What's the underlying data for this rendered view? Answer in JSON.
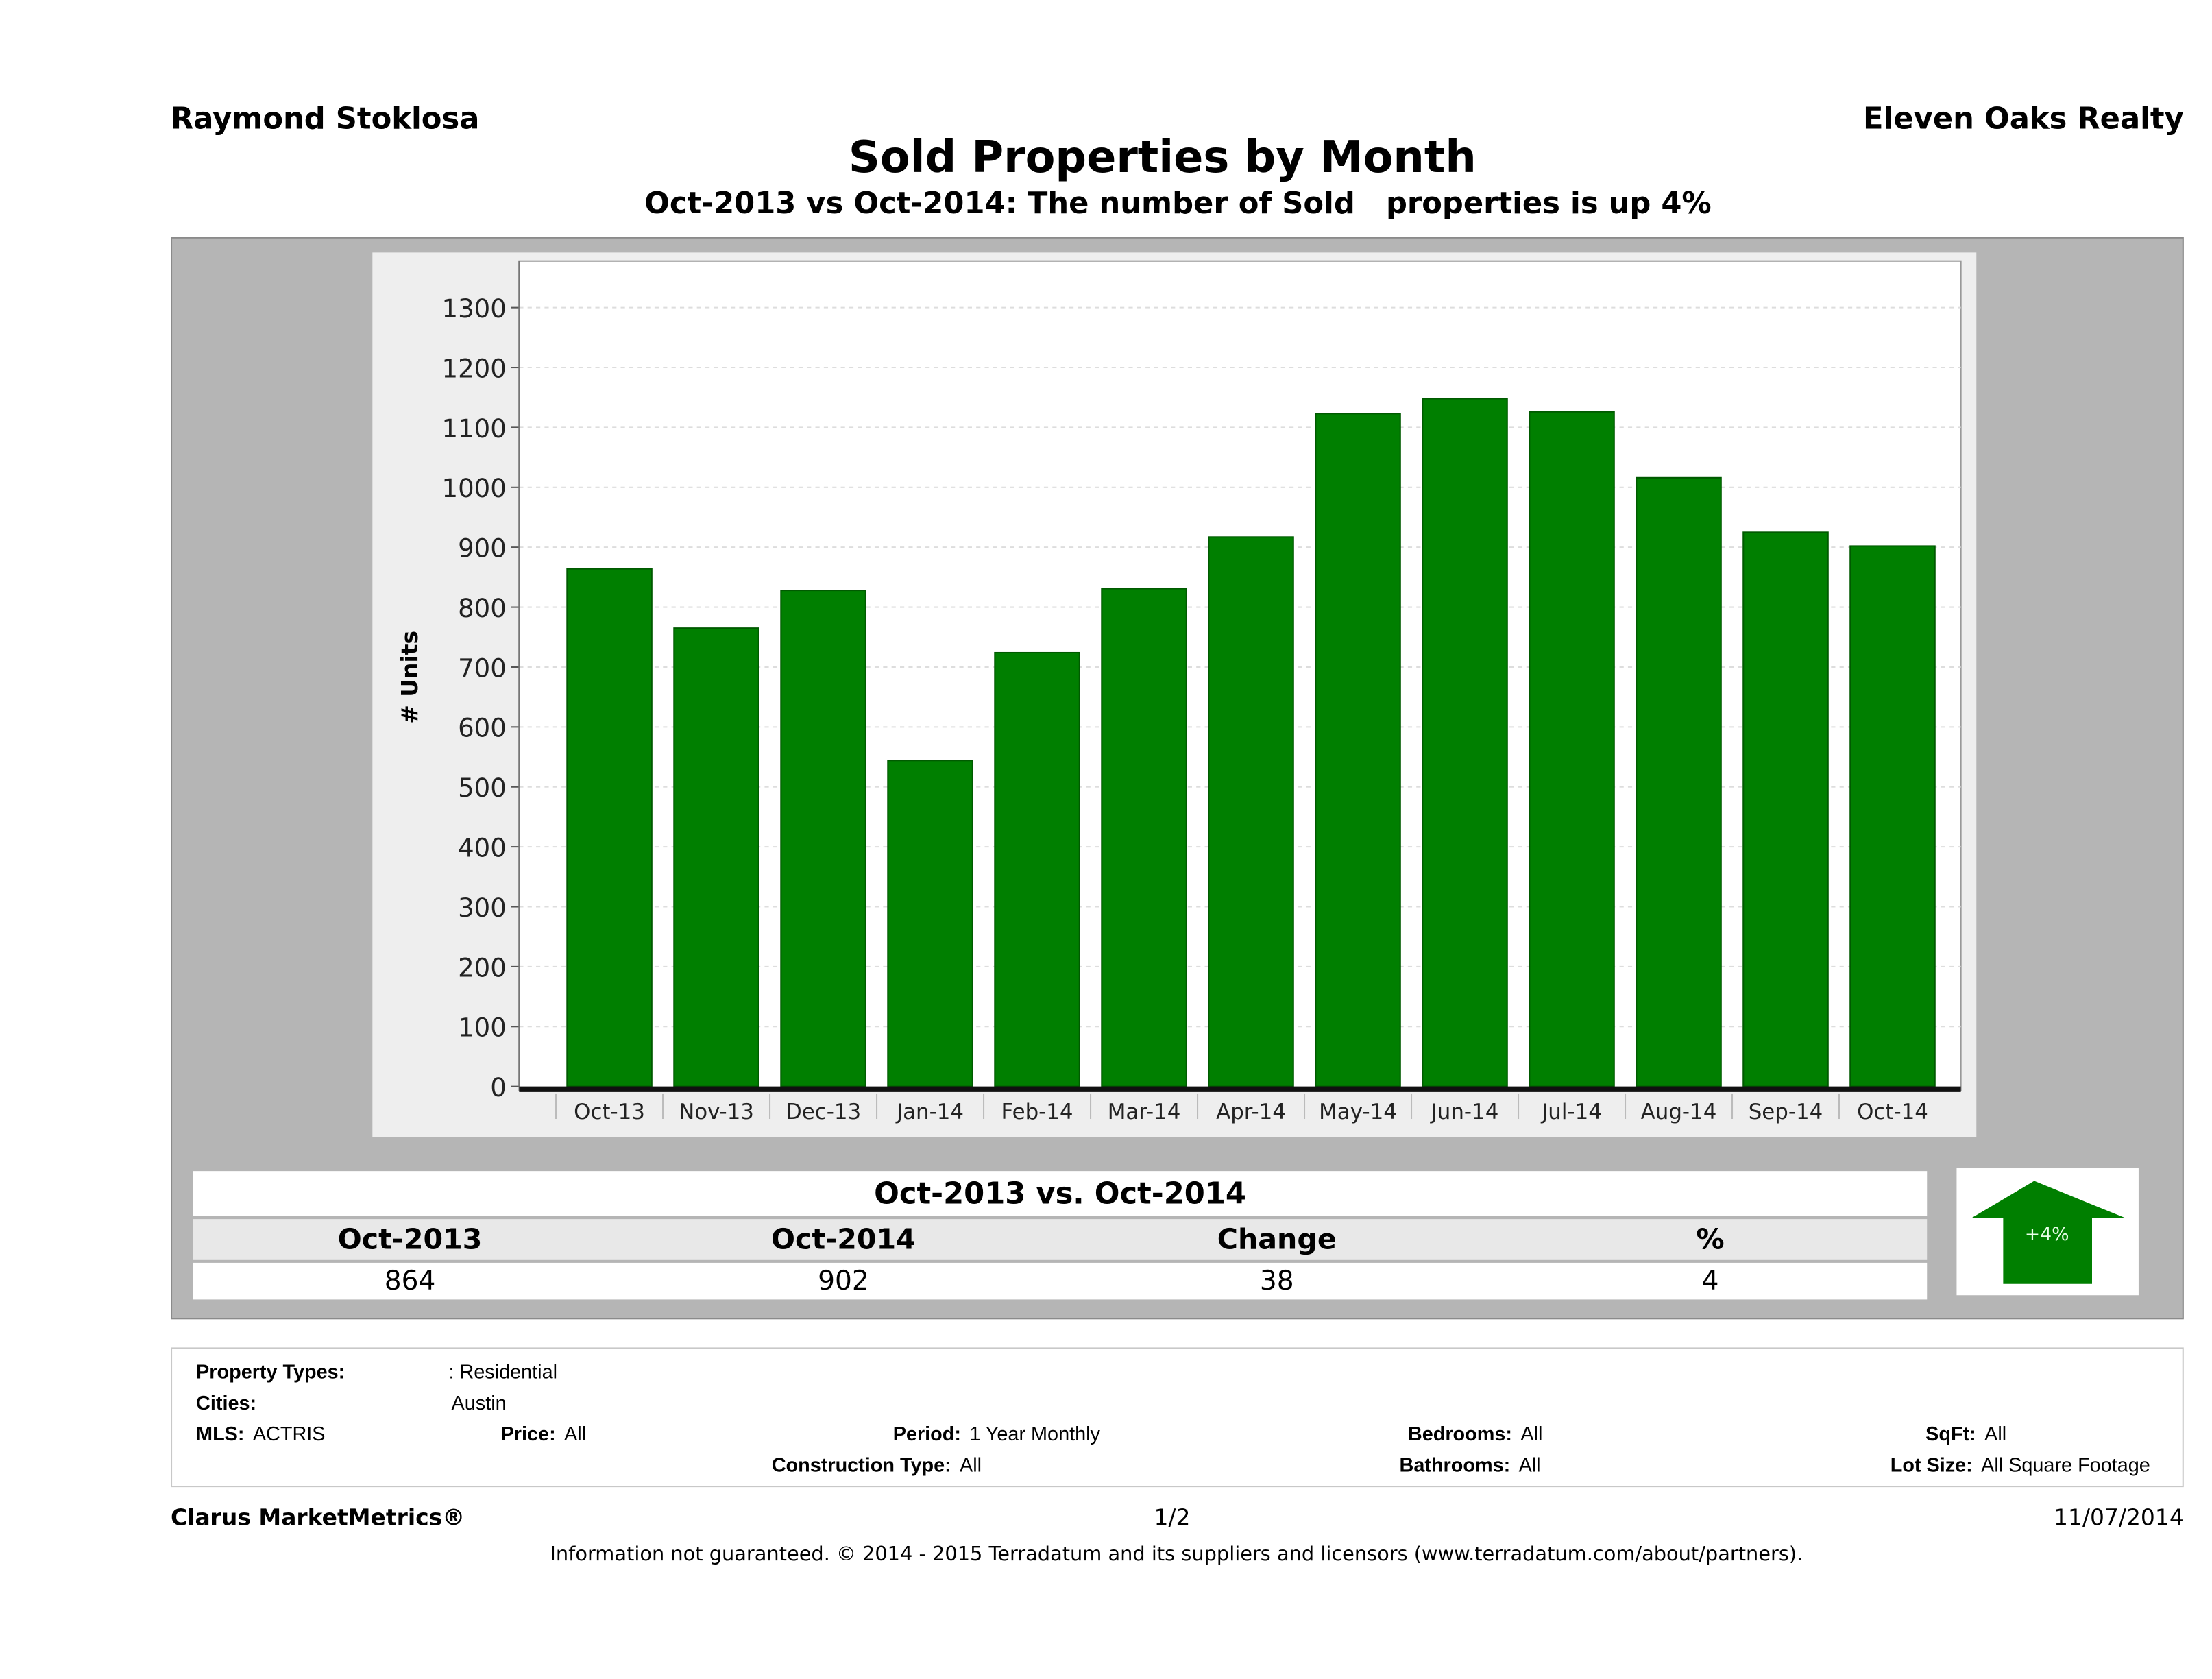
{
  "header": {
    "agent": "Raymond Stoklosa",
    "company": "Eleven Oaks Realty",
    "title": "Sold Properties by Month",
    "subtitle": "Oct-2013 vs Oct-2014: The number of Sold   properties is up 4%"
  },
  "chart_data": {
    "type": "bar",
    "title": "Sold Properties by Month",
    "xlabel": "",
    "ylabel": "# Units",
    "ylim": [
      0,
      1300
    ],
    "yticks": [
      0,
      100,
      200,
      300,
      400,
      500,
      600,
      700,
      800,
      900,
      1000,
      1100,
      1200,
      1300
    ],
    "grid": true,
    "bar_color": "#007f00",
    "categories": [
      "Oct-13",
      "Nov-13",
      "Dec-13",
      "Jan-14",
      "Feb-14",
      "Mar-14",
      "Apr-14",
      "May-14",
      "Jun-14",
      "Jul-14",
      "Aug-14",
      "Sep-14",
      "Oct-14"
    ],
    "values": [
      864,
      765,
      828,
      544,
      724,
      831,
      917,
      1123,
      1148,
      1126,
      1016,
      925,
      902
    ]
  },
  "summary": {
    "title": "Oct-2013 vs. Oct-2014",
    "headers": [
      "Oct-2013",
      "Oct-2014",
      "Change",
      "%"
    ],
    "values": [
      "864",
      "902",
      "38",
      "4"
    ],
    "badge": "+4%",
    "badge_icon": "up-arrow-icon",
    "badge_color": "#007f00"
  },
  "filters": {
    "property_types_label": "Property Types:",
    "property_types": ": Residential",
    "cities_label": "Cities:",
    "cities": "Austin",
    "mls_label": "MLS:",
    "mls": "ACTRIS",
    "price_label": "Price:",
    "price": "All",
    "period_label": "Period:",
    "period": "1 Year Monthly",
    "bedrooms_label": "Bedrooms:",
    "bedrooms": "All",
    "sqft_label": "SqFt:",
    "sqft": "All",
    "construction_label": "Construction Type:",
    "construction": "All",
    "bathrooms_label": "Bathrooms:",
    "bathrooms": "All",
    "lot_size_label": "Lot Size:",
    "lot_size": "All Square Footage"
  },
  "footer": {
    "brand": "Clarus MarketMetrics®",
    "page": "1/2",
    "date": "11/07/2014",
    "disclaimer": "Information not guaranteed. © 2014 - 2015 Terradatum and its suppliers and licensors (www.terradatum.com/about/partners)."
  }
}
